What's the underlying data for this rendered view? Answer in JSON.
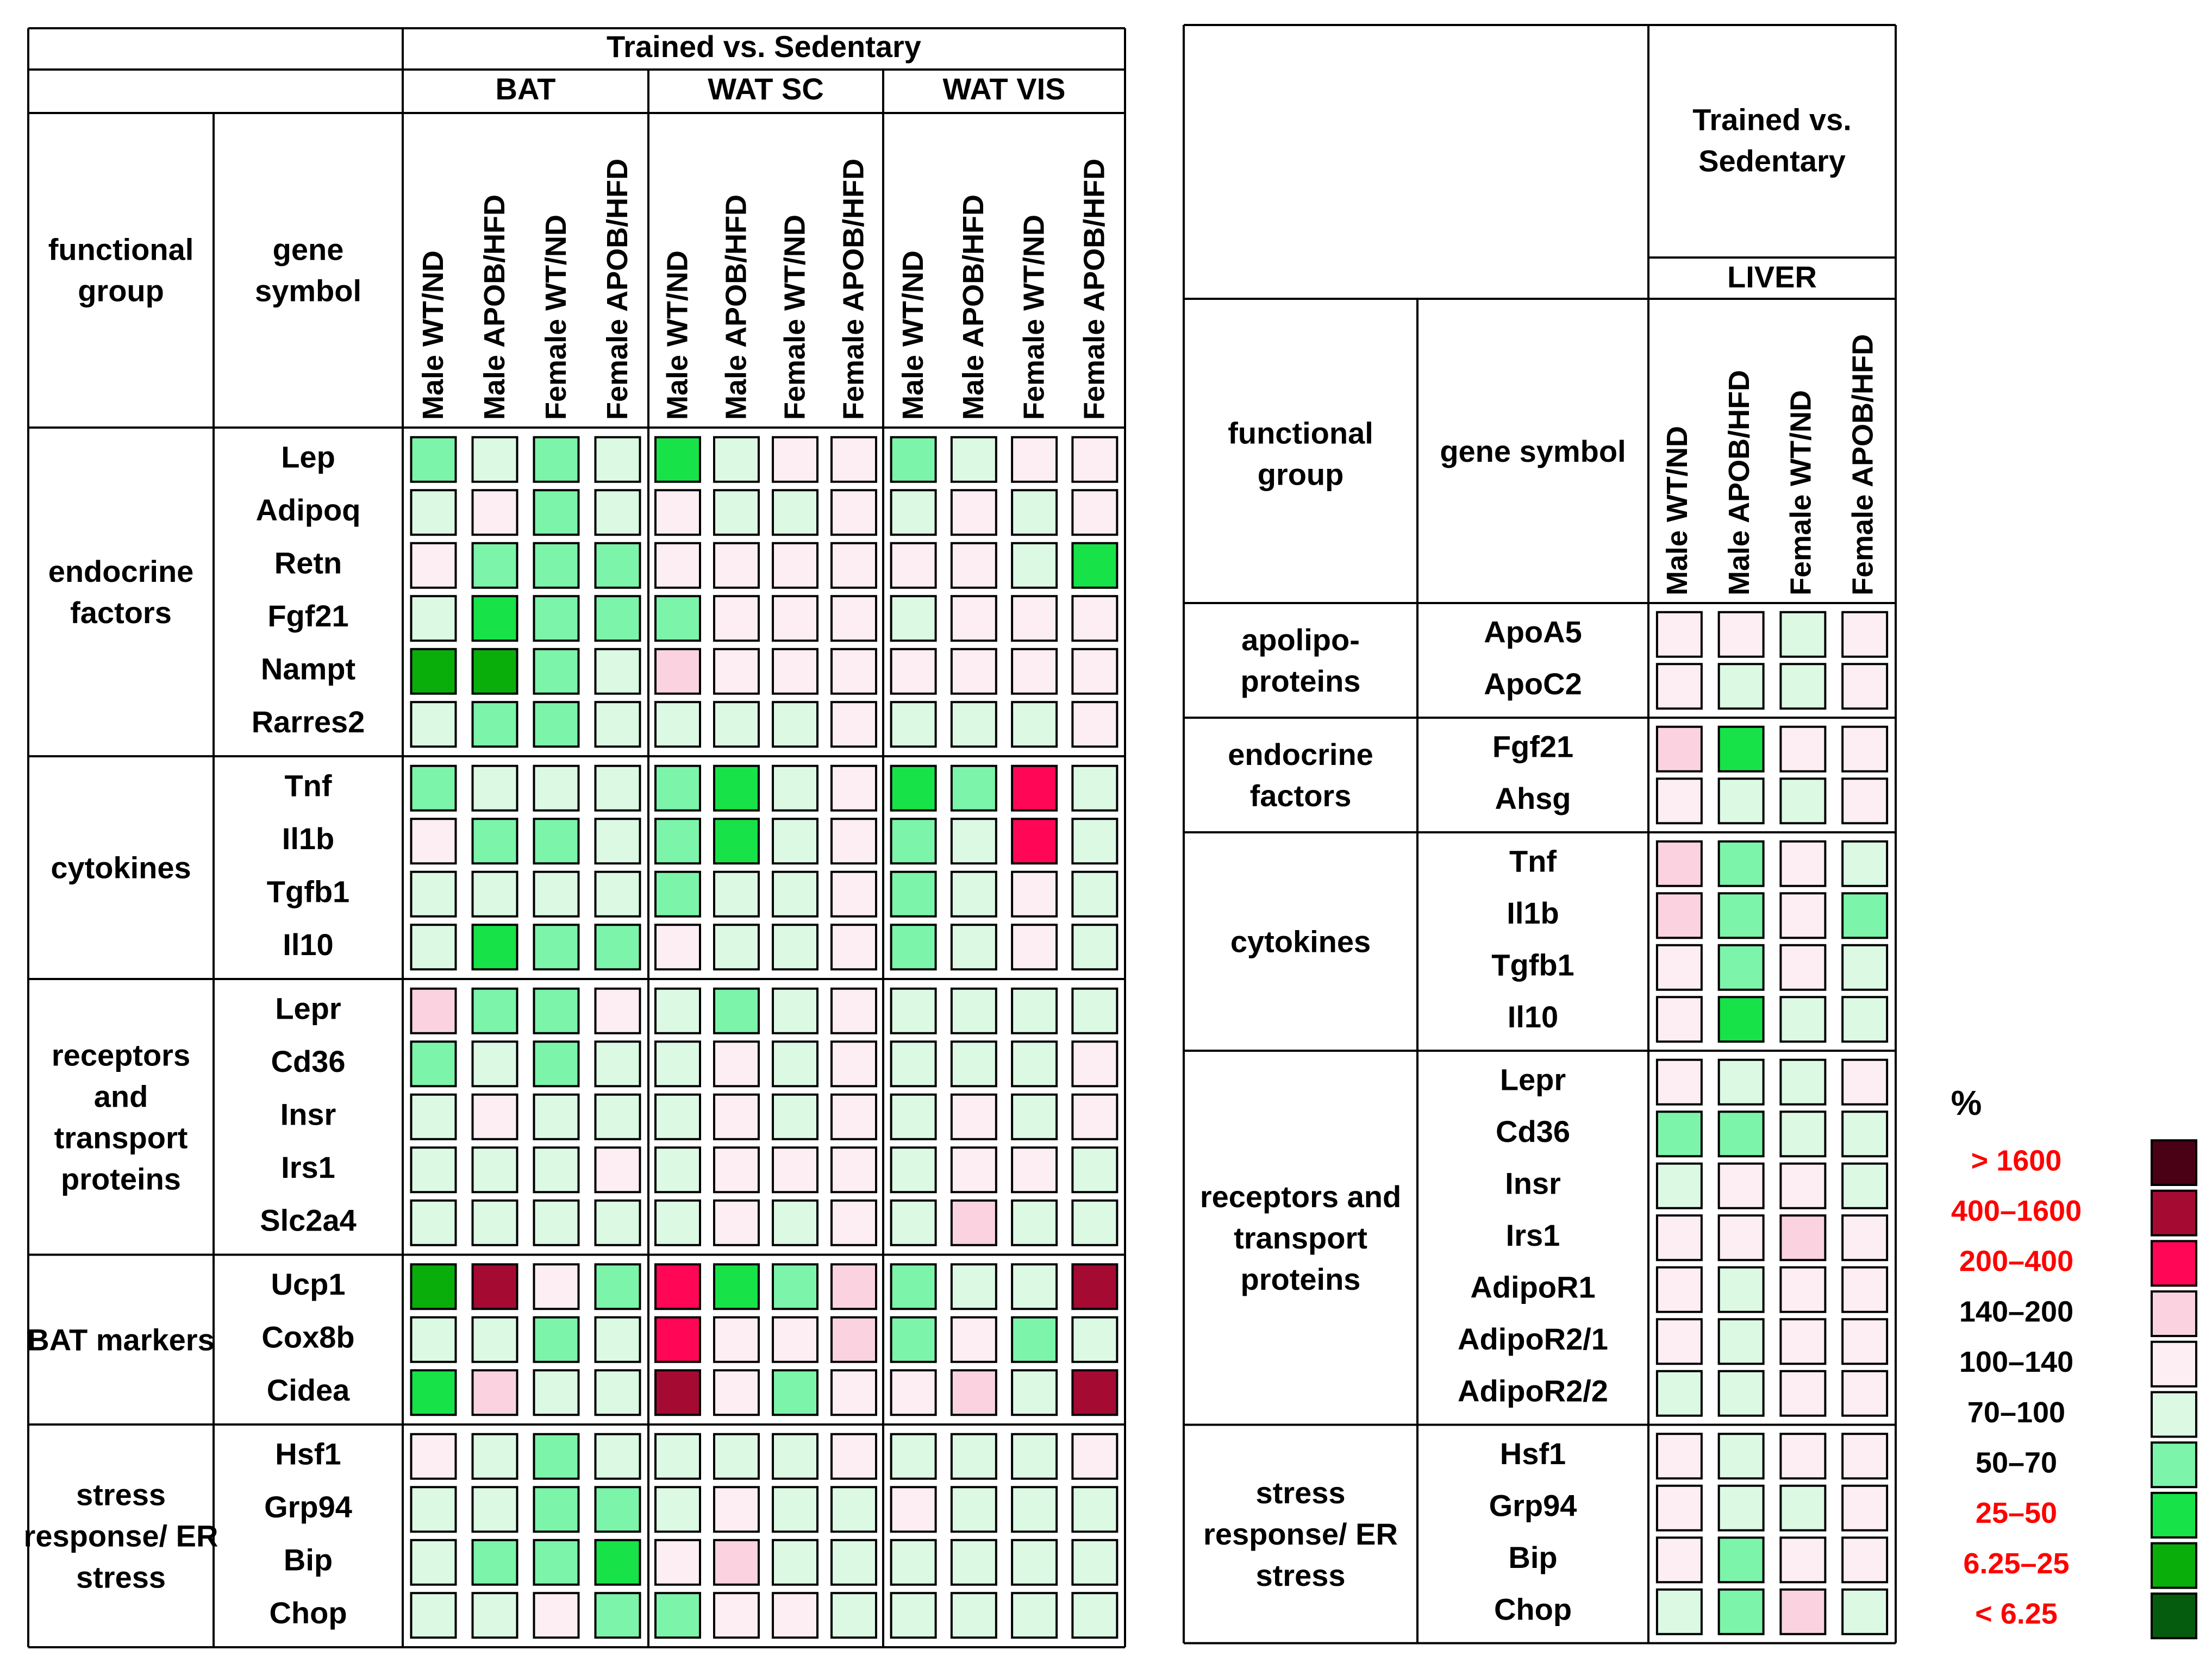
{
  "chart_data": {
    "type": "heatmap",
    "legend": {
      "title": "%",
      "placement": "right",
      "items": [
        {
          "label": "> 1600",
          "color": "#4a0015",
          "label_color": "#ff0000"
        },
        {
          "label": "400–1600",
          "color": "#a50b32",
          "label_color": "#ff0000"
        },
        {
          "label": "200–400",
          "color": "#ff0657",
          "label_color": "#ff0000"
        },
        {
          "label": "140–200",
          "color": "#fbd3e0",
          "label_color": "#000000"
        },
        {
          "label": "100–140",
          "color": "#fdeef3",
          "label_color": "#000000"
        },
        {
          "label": "70–100",
          "color": "#dcf9e4",
          "label_color": "#000000"
        },
        {
          "label": "50–70",
          "color": "#7cf4a9",
          "label_color": "#000000"
        },
        {
          "label": "25–50",
          "color": "#17e348",
          "label_color": "#ff0000"
        },
        {
          "label": "6.25–25",
          "color": "#0aae0b",
          "label_color": "#ff0000"
        },
        {
          "label": "< 6.25",
          "color": "#065c0e",
          "label_color": "#ff0000"
        }
      ]
    },
    "panels": [
      {
        "name": "adipose",
        "header": "Trained vs. Sedentary",
        "col_header_functional_group": "functional group",
        "col_header_gene_symbol": "gene symbol",
        "tissues": [
          "BAT",
          "WAT SC",
          "WAT VIS"
        ],
        "conditions": [
          "Male WT/ND",
          "Male APOB/HFD",
          "Female WT/ND",
          "Female APOB/HFD"
        ],
        "groups": [
          {
            "name": "endocrine factors",
            "genes": [
              {
                "symbol": "Lep",
                "values": [
                  "50–70",
                  "70–100",
                  "50–70",
                  "70–100",
                  "25–50",
                  "70–100",
                  "100–140",
                  "100–140",
                  "50–70",
                  "70–100",
                  "100–140",
                  "100–140"
                ]
              },
              {
                "symbol": "Adipoq",
                "values": [
                  "70–100",
                  "100–140",
                  "50–70",
                  "70–100",
                  "100–140",
                  "70–100",
                  "70–100",
                  "100–140",
                  "70–100",
                  "100–140",
                  "70–100",
                  "100–140"
                ]
              },
              {
                "symbol": "Retn",
                "values": [
                  "100–140",
                  "50–70",
                  "50–70",
                  "50–70",
                  "100–140",
                  "100–140",
                  "100–140",
                  "100–140",
                  "100–140",
                  "100–140",
                  "70–100",
                  "25–50"
                ]
              },
              {
                "symbol": "Fgf21",
                "values": [
                  "70–100",
                  "25–50",
                  "50–70",
                  "50–70",
                  "50–70",
                  "100–140",
                  "100–140",
                  "100–140",
                  "70–100",
                  "100–140",
                  "100–140",
                  "100–140"
                ]
              },
              {
                "symbol": "Nampt",
                "values": [
                  "6.25–25",
                  "6.25–25",
                  "50–70",
                  "70–100",
                  "140–200",
                  "100–140",
                  "100–140",
                  "100–140",
                  "100–140",
                  "100–140",
                  "100–140",
                  "100–140"
                ]
              },
              {
                "symbol": "Rarres2",
                "values": [
                  "70–100",
                  "50–70",
                  "50–70",
                  "70–100",
                  "70–100",
                  "70–100",
                  "70–100",
                  "100–140",
                  "70–100",
                  "70–100",
                  "70–100",
                  "100–140"
                ]
              }
            ]
          },
          {
            "name": "cytokines",
            "genes": [
              {
                "symbol": "Tnf",
                "values": [
                  "50–70",
                  "70–100",
                  "70–100",
                  "70–100",
                  "50–70",
                  "25–50",
                  "70–100",
                  "100–140",
                  "25–50",
                  "50–70",
                  "200–400",
                  "70–100"
                ]
              },
              {
                "symbol": "Il1b",
                "values": [
                  "100–140",
                  "50–70",
                  "50–70",
                  "70–100",
                  "50–70",
                  "25–50",
                  "70–100",
                  "100–140",
                  "50–70",
                  "70–100",
                  "200–400",
                  "70–100"
                ]
              },
              {
                "symbol": "Tgfb1",
                "values": [
                  "70–100",
                  "70–100",
                  "70–100",
                  "70–100",
                  "50–70",
                  "70–100",
                  "70–100",
                  "100–140",
                  "50–70",
                  "70–100",
                  "100–140",
                  "70–100"
                ]
              },
              {
                "symbol": "Il10",
                "values": [
                  "70–100",
                  "25–50",
                  "50–70",
                  "50–70",
                  "100–140",
                  "70–100",
                  "70–100",
                  "100–140",
                  "50–70",
                  "70–100",
                  "100–140",
                  "70–100"
                ]
              }
            ]
          },
          {
            "name": "receptors and transport proteins",
            "genes": [
              {
                "symbol": "Lepr",
                "values": [
                  "140–200",
                  "50–70",
                  "50–70",
                  "100–140",
                  "70–100",
                  "50–70",
                  "70–100",
                  "100–140",
                  "70–100",
                  "70–100",
                  "70–100",
                  "70–100"
                ]
              },
              {
                "symbol": "Cd36",
                "values": [
                  "50–70",
                  "70–100",
                  "50–70",
                  "70–100",
                  "70–100",
                  "100–140",
                  "70–100",
                  "100–140",
                  "70–100",
                  "70–100",
                  "70–100",
                  "100–140"
                ]
              },
              {
                "symbol": "Insr",
                "values": [
                  "70–100",
                  "100–140",
                  "70–100",
                  "70–100",
                  "70–100",
                  "100–140",
                  "70–100",
                  "100–140",
                  "70–100",
                  "100–140",
                  "70–100",
                  "100–140"
                ]
              },
              {
                "symbol": "Irs1",
                "values": [
                  "70–100",
                  "70–100",
                  "70–100",
                  "100–140",
                  "70–100",
                  "100–140",
                  "100–140",
                  "100–140",
                  "70–100",
                  "100–140",
                  "100–140",
                  "70–100"
                ]
              },
              {
                "symbol": "Slc2a4",
                "values": [
                  "70–100",
                  "70–100",
                  "70–100",
                  "70–100",
                  "70–100",
                  "100–140",
                  "70–100",
                  "100–140",
                  "70–100",
                  "140–200",
                  "70–100",
                  "70–100"
                ]
              }
            ]
          },
          {
            "name": "BAT markers",
            "genes": [
              {
                "symbol": "Ucp1",
                "values": [
                  "6.25–25",
                  "400–1600",
                  "100–140",
                  "50–70",
                  "200–400",
                  "25–50",
                  "50–70",
                  "140–200",
                  "50–70",
                  "70–100",
                  "70–100",
                  "400–1600"
                ]
              },
              {
                "symbol": "Cox8b",
                "values": [
                  "70–100",
                  "70–100",
                  "50–70",
                  "70–100",
                  "200–400",
                  "100–140",
                  "100–140",
                  "140–200",
                  "50–70",
                  "100–140",
                  "50–70",
                  "70–100"
                ]
              },
              {
                "symbol": "Cidea",
                "values": [
                  "25–50",
                  "140–200",
                  "70–100",
                  "70–100",
                  "400–1600",
                  "100–140",
                  "50–70",
                  "100–140",
                  "100–140",
                  "140–200",
                  "70–100",
                  "400–1600"
                ]
              }
            ]
          },
          {
            "name": "stress response/ ER stress",
            "genes": [
              {
                "symbol": "Hsf1",
                "values": [
                  "100–140",
                  "70–100",
                  "50–70",
                  "70–100",
                  "70–100",
                  "70–100",
                  "70–100",
                  "100–140",
                  "70–100",
                  "70–100",
                  "70–100",
                  "100–140"
                ]
              },
              {
                "symbol": "Grp94",
                "values": [
                  "70–100",
                  "70–100",
                  "50–70",
                  "50–70",
                  "70–100",
                  "100–140",
                  "70–100",
                  "70–100",
                  "100–140",
                  "70–100",
                  "70–100",
                  "70–100"
                ]
              },
              {
                "symbol": "Bip",
                "values": [
                  "70–100",
                  "50–70",
                  "50–70",
                  "25–50",
                  "100–140",
                  "140–200",
                  "70–100",
                  "70–100",
                  "70–100",
                  "70–100",
                  "70–100",
                  "70–100"
                ]
              },
              {
                "symbol": "Chop",
                "values": [
                  "70–100",
                  "70–100",
                  "100–140",
                  "50–70",
                  "50–70",
                  "100–140",
                  "100–140",
                  "70–100",
                  "70–100",
                  "70–100",
                  "70–100",
                  "70–100"
                ]
              }
            ]
          }
        ]
      },
      {
        "name": "liver",
        "header": "Trained vs. Sedentary",
        "col_header_functional_group": "functional group",
        "col_header_gene_symbol": "gene symbol",
        "tissues": [
          "LIVER"
        ],
        "conditions": [
          "Male WT/ND",
          "Male APOB/HFD",
          "Female WT/ND",
          "Female APOB/HFD"
        ],
        "groups": [
          {
            "name": "apolipo- proteins",
            "genes": [
              {
                "symbol": "ApoA5",
                "values": [
                  "100–140",
                  "100–140",
                  "70–100",
                  "100–140"
                ]
              },
              {
                "symbol": "ApoC2",
                "values": [
                  "100–140",
                  "70–100",
                  "70–100",
                  "100–140"
                ]
              }
            ]
          },
          {
            "name": "endocrine factors",
            "genes": [
              {
                "symbol": "Fgf21",
                "values": [
                  "140–200",
                  "25–50",
                  "100–140",
                  "100–140"
                ]
              },
              {
                "symbol": "Ahsg",
                "values": [
                  "100–140",
                  "70–100",
                  "70–100",
                  "100–140"
                ]
              }
            ]
          },
          {
            "name": "cytokines",
            "genes": [
              {
                "symbol": "Tnf",
                "values": [
                  "140–200",
                  "50–70",
                  "100–140",
                  "70–100"
                ]
              },
              {
                "symbol": "Il1b",
                "values": [
                  "140–200",
                  "50–70",
                  "100–140",
                  "50–70"
                ]
              },
              {
                "symbol": "Tgfb1",
                "values": [
                  "100–140",
                  "50–70",
                  "100–140",
                  "70–100"
                ]
              },
              {
                "symbol": "Il10",
                "values": [
                  "100–140",
                  "25–50",
                  "70–100",
                  "70–100"
                ]
              }
            ]
          },
          {
            "name": "receptors and transport proteins",
            "genes": [
              {
                "symbol": "Lepr",
                "values": [
                  "100–140",
                  "70–100",
                  "70–100",
                  "100–140"
                ]
              },
              {
                "symbol": "Cd36",
                "values": [
                  "50–70",
                  "50–70",
                  "70–100",
                  "70–100"
                ]
              },
              {
                "symbol": "Insr",
                "values": [
                  "70–100",
                  "100–140",
                  "100–140",
                  "70–100"
                ]
              },
              {
                "symbol": "Irs1",
                "values": [
                  "100–140",
                  "100–140",
                  "140–200",
                  "100–140"
                ]
              },
              {
                "symbol": "AdipoR1",
                "values": [
                  "100–140",
                  "70–100",
                  "100–140",
                  "100–140"
                ]
              },
              {
                "symbol": "AdipoR2/1",
                "values": [
                  "100–140",
                  "70–100",
                  "100–140",
                  "100–140"
                ]
              },
              {
                "symbol": "AdipoR2/2",
                "values": [
                  "70–100",
                  "70–100",
                  "100–140",
                  "100–140"
                ]
              }
            ]
          },
          {
            "name": "stress response/ ER stress",
            "genes": [
              {
                "symbol": "Hsf1",
                "values": [
                  "100–140",
                  "70–100",
                  "100–140",
                  "100–140"
                ]
              },
              {
                "symbol": "Grp94",
                "values": [
                  "100–140",
                  "70–100",
                  "70–100",
                  "100–140"
                ]
              },
              {
                "symbol": "Bip",
                "values": [
                  "100–140",
                  "50–70",
                  "100–140",
                  "100–140"
                ]
              },
              {
                "symbol": "Chop",
                "values": [
                  "70–100",
                  "50–70",
                  "140–200",
                  "70–100"
                ]
              }
            ]
          }
        ]
      }
    ]
  }
}
